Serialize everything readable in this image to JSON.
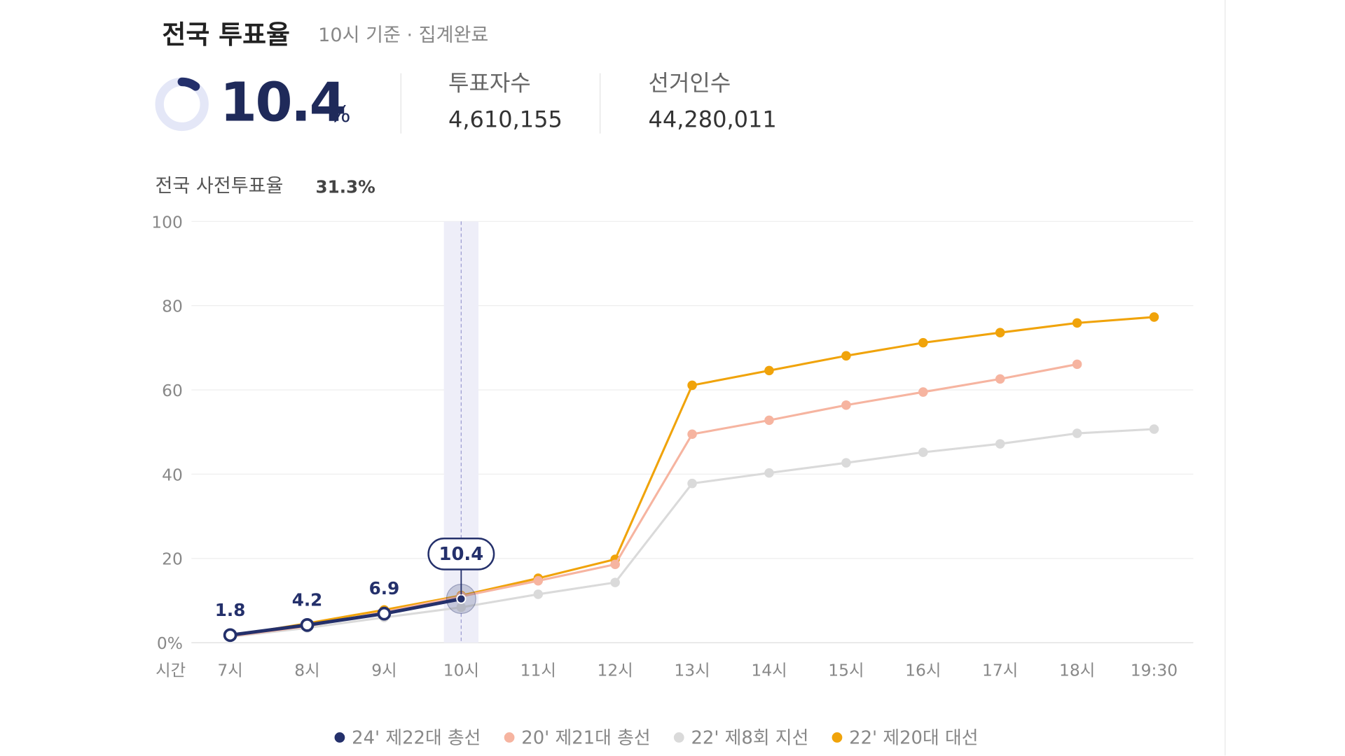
{
  "header": {
    "title": "전국 투표율",
    "subtitle": "10시 기준 · 집계완료",
    "rate": 10.4,
    "rate_unit": "%",
    "stats": [
      {
        "label": "투표자수",
        "value": "4,610,155"
      },
      {
        "label": "선거인수",
        "value": "44,280,011"
      }
    ]
  },
  "early_vote": {
    "label": "전국 사전투표율",
    "value": "31.3%"
  },
  "chart_data": {
    "type": "line",
    "x_label": "시간",
    "categories": [
      "7시",
      "8시",
      "9시",
      "10시",
      "11시",
      "12시",
      "13시",
      "14시",
      "15시",
      "16시",
      "17시",
      "18시",
      "19:30"
    ],
    "series": [
      {
        "name": "24' 제22대 총선",
        "color": "#24306b",
        "values": [
          1.8,
          4.2,
          6.9,
          10.4,
          null,
          null,
          null,
          null,
          null,
          null,
          null,
          null,
          null
        ]
      },
      {
        "name": "20' 제21대 총선",
        "color": "#f6b4a0",
        "values": [
          1.5,
          3.9,
          7.3,
          11.0,
          14.7,
          18.6,
          49.5,
          52.8,
          56.4,
          59.5,
          62.6,
          66.1,
          null
        ]
      },
      {
        "name": "22' 제8회 지선",
        "color": "#dadada",
        "values": [
          1.4,
          3.5,
          6.0,
          8.4,
          11.5,
          14.3,
          37.8,
          40.3,
          42.7,
          45.2,
          47.2,
          49.7,
          50.7
        ]
      },
      {
        "name": "22' 제20대 대선",
        "color": "#f0a30a",
        "values": [
          1.6,
          4.6,
          7.8,
          11.2,
          15.3,
          19.8,
          61.1,
          64.6,
          68.1,
          71.2,
          73.6,
          75.9,
          77.3
        ]
      }
    ],
    "ylim": [
      0,
      100
    ],
    "yticks": [
      {
        "value": 0,
        "label": "0%"
      },
      20,
      40,
      60,
      80,
      100
    ],
    "grid": true
  }
}
